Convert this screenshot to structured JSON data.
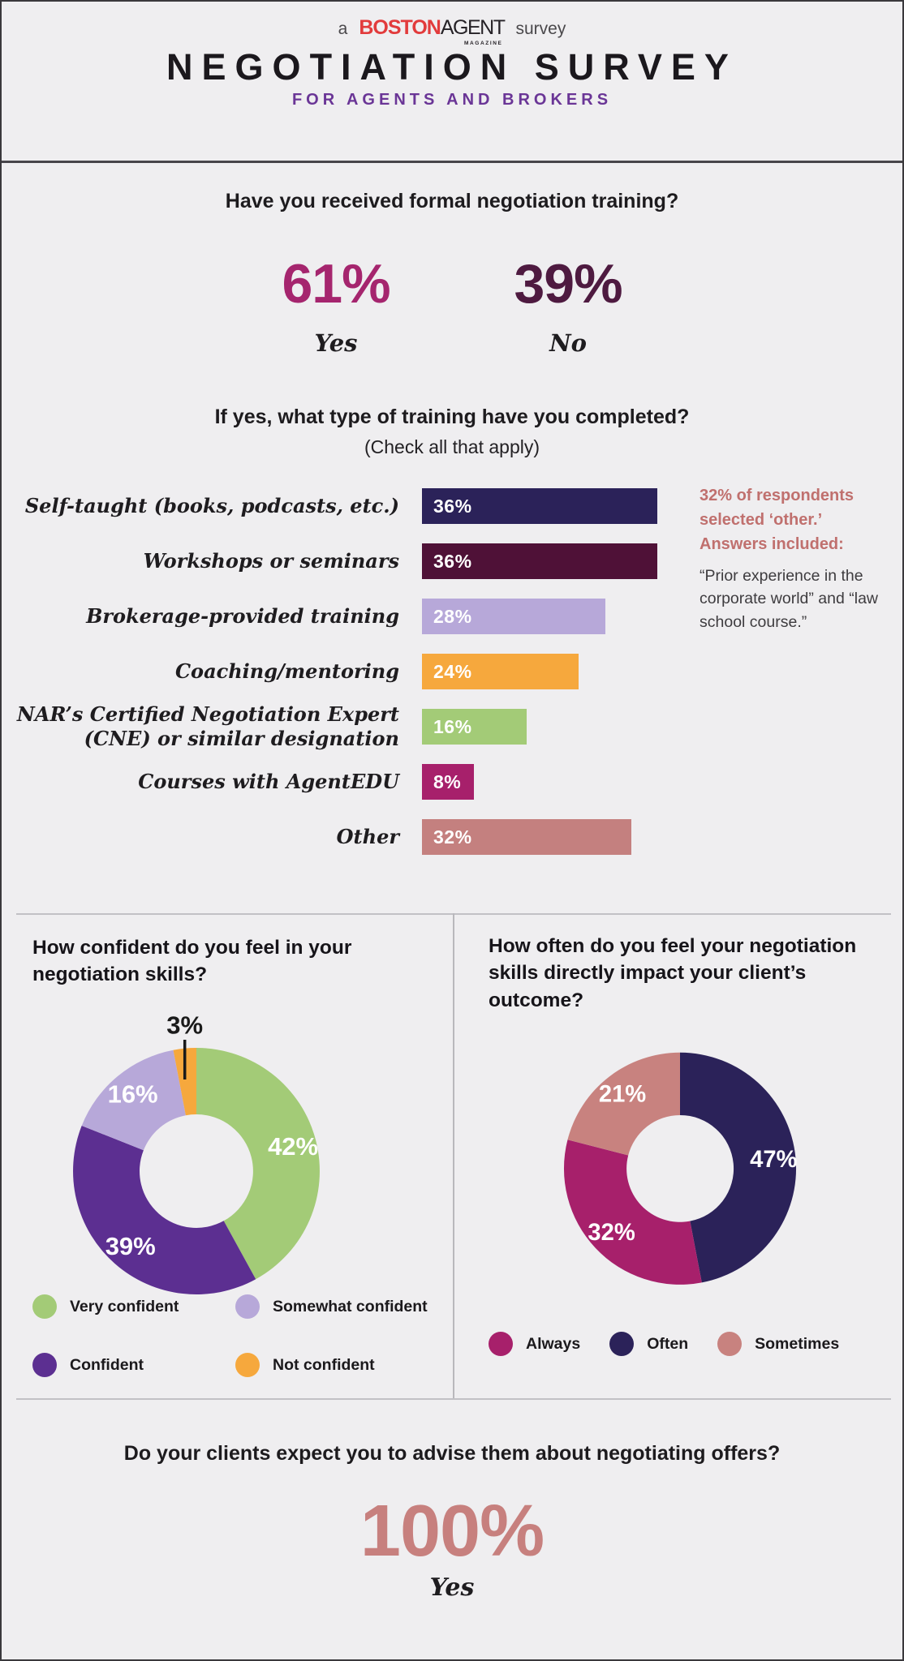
{
  "header": {
    "pretitle_prefix": "a",
    "logo_boston": "BOSTON",
    "logo_agent": "AGENT",
    "logo_magazine": "MAGAZINE",
    "pretitle_suffix": "survey",
    "title": "NEGOTIATION SURVEY",
    "subtitle": "FOR AGENTS AND BROKERS",
    "subtitle_color": "#6a3596",
    "logo_red": "#e23b3c"
  },
  "q1": {
    "question": "Have you received formal negotiation training?",
    "answers": [
      {
        "value": "61%",
        "label": "Yes",
        "color": "#a5256e"
      },
      {
        "value": "39%",
        "label": "No",
        "color": "#4e1a40"
      }
    ]
  },
  "q2": {
    "question": "If yes, what type of training have you completed?",
    "subtitle": "(Check all that apply)",
    "note": {
      "highlight": "32% of respondents selected ‘other.’ Answers included:",
      "body": "“Prior experience in the corporate world” and “law school course.”"
    }
  },
  "q4": {
    "question": "Do your clients expect you to advise them about negotiating offers?",
    "value": "100%",
    "label": "Yes",
    "color": "#c7807e"
  },
  "chart_data": [
    {
      "id": "training-types",
      "type": "bar",
      "orientation": "horizontal",
      "title": "If yes, what type of training have you completed?",
      "subtitle": "(Check all that apply)",
      "categories": [
        "Self-taught (books, podcasts, etc.)",
        "Workshops or seminars",
        "Brokerage-provided training",
        "Coaching/mentoring",
        "NAR’s Certified Negotiation Expert (CNE) or similar designation",
        "Courses with AgentEDU",
        "Other"
      ],
      "values": [
        36,
        36,
        28,
        24,
        16,
        8,
        32
      ],
      "value_labels": [
        "36%",
        "36%",
        "28%",
        "24%",
        "16%",
        "8%",
        "32%"
      ],
      "colors": [
        "#2b2259",
        "#4f1137",
        "#b7a8d9",
        "#f6a83d",
        "#a3cb77",
        "#a7206b",
        "#c4807f"
      ],
      "unit": "%",
      "xlim": [
        0,
        40
      ],
      "grid": false
    },
    {
      "id": "confidence",
      "type": "pie",
      "subtype": "donut",
      "title": "How confident do you feel in your negotiation skills?",
      "slices": [
        {
          "label": "Very confident",
          "value": 42,
          "color": "#a3cb77"
        },
        {
          "label": "Confident",
          "value": 39,
          "color": "#5c2f91"
        },
        {
          "label": "Somewhat confident",
          "value": 16,
          "color": "#b7a8d9"
        },
        {
          "label": "Not confident",
          "value": 3,
          "color": "#f6a83d",
          "label_outside": true
        }
      ],
      "legend_position": "bottom",
      "legend": [
        {
          "label": "Very confident",
          "color": "#a3cb77"
        },
        {
          "label": "Somewhat confident",
          "color": "#b7a8d9"
        },
        {
          "label": "Confident",
          "color": "#5c2f91"
        },
        {
          "label": "Not confident",
          "color": "#f6a83d"
        }
      ]
    },
    {
      "id": "impact",
      "type": "pie",
      "subtype": "donut",
      "title": "How often do you feel your negotiation skills directly impact your client’s outcome?",
      "slices": [
        {
          "label": "Often",
          "value": 47,
          "color": "#2b2259"
        },
        {
          "label": "Always",
          "value": 32,
          "color": "#a7206b"
        },
        {
          "label": "Sometimes",
          "value": 21,
          "color": "#c8827f"
        }
      ],
      "legend_position": "bottom",
      "legend": [
        {
          "label": "Always",
          "color": "#a7206b"
        },
        {
          "label": "Often",
          "color": "#2b2259"
        },
        {
          "label": "Sometimes",
          "color": "#c8827f"
        }
      ]
    }
  ]
}
